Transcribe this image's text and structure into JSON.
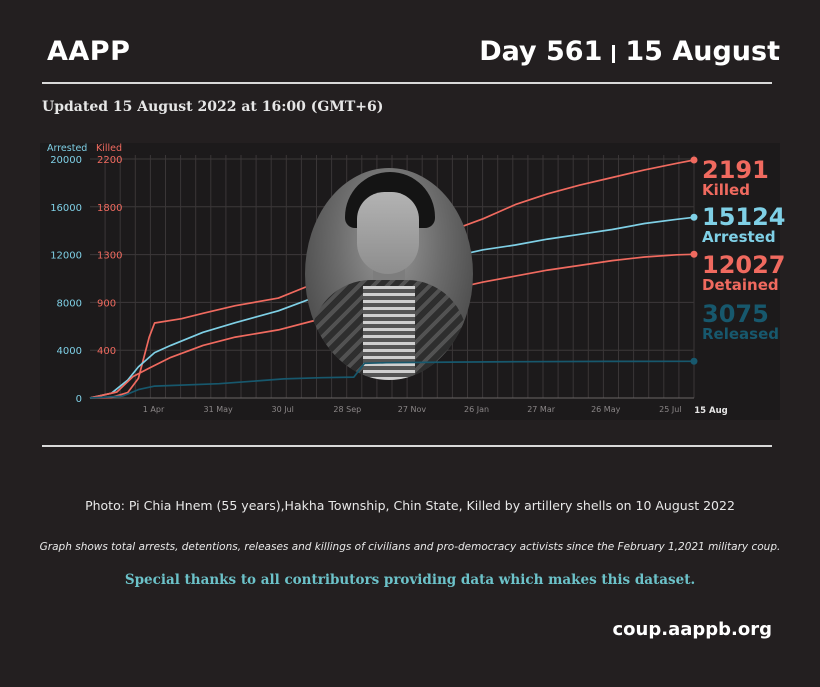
{
  "header": {
    "brand": "AAPP",
    "day": "Day 561",
    "date": "15 August"
  },
  "updated": "Updated 15 August 2022 at 16:00 (GMT+6)",
  "colors": {
    "arrested": "#7fd0e6",
    "killed": "#f06a5f",
    "detained": "#f06a5f",
    "released": "#17586d",
    "background": "#231f20",
    "thanks": "#6cc2c9"
  },
  "callouts": {
    "killed": {
      "value": "2191",
      "label": "Killed"
    },
    "arrested": {
      "value": "15124",
      "label": "Arrested"
    },
    "detained": {
      "value": "12027",
      "label": "Detained"
    },
    "released": {
      "value": "3075",
      "label": "Released"
    }
  },
  "photo_icon": "portrait-photo",
  "photo_caption": "Photo: Pi Chia Hnem (55 years),Hakha Township, Chin State, Killed by artillery shells  on 10 August 2022",
  "graph_note": "Graph shows total arrests, detentions, releases and killings of civilians and pro-democracy activists since the February 1,2021 military coup.",
  "thanks": "Special thanks to all contributors providing data which makes this dataset.",
  "website": "coup.aappb.org",
  "chart_data": {
    "type": "line",
    "left_axis_label": "Arrested",
    "right_axis_label": "Killed",
    "left_ticks": [
      "20000",
      "16000",
      "12000",
      "8000",
      "4000",
      "0"
    ],
    "right_ticks": [
      "2200",
      "1800",
      "1300",
      "900",
      "400"
    ],
    "x_ticks": [
      "1 Apr",
      "31 May",
      "30 Jul",
      "28 Sep",
      "27 Nov",
      "26 Jan",
      "27 Mar",
      "26 May",
      "25 Jul"
    ],
    "x_end_label": "15 Aug",
    "ylim_left": [
      0,
      20000
    ],
    "ylim_right": [
      0,
      2200
    ],
    "grid": true,
    "x_day_range": [
      0,
      561
    ],
    "series": [
      {
        "name": "Killed",
        "axis": "right",
        "final": 2191,
        "points": [
          [
            0,
            0
          ],
          [
            20,
            5
          ],
          [
            35,
            50
          ],
          [
            45,
            180
          ],
          [
            55,
            560
          ],
          [
            60,
            690
          ],
          [
            85,
            730
          ],
          [
            105,
            780
          ],
          [
            135,
            850
          ],
          [
            175,
            920
          ],
          [
            205,
            1040
          ],
          [
            245,
            1200
          ],
          [
            275,
            1320
          ],
          [
            305,
            1430
          ],
          [
            335,
            1540
          ],
          [
            365,
            1650
          ],
          [
            395,
            1780
          ],
          [
            425,
            1880
          ],
          [
            455,
            1960
          ],
          [
            485,
            2030
          ],
          [
            515,
            2100
          ],
          [
            545,
            2160
          ],
          [
            561,
            2191
          ]
        ]
      },
      {
        "name": "Arrested",
        "axis": "left",
        "final": 15124,
        "points": [
          [
            0,
            0
          ],
          [
            20,
            400
          ],
          [
            35,
            1500
          ],
          [
            45,
            2600
          ],
          [
            60,
            3800
          ],
          [
            75,
            4400
          ],
          [
            105,
            5500
          ],
          [
            135,
            6300
          ],
          [
            175,
            7300
          ],
          [
            205,
            8300
          ],
          [
            245,
            9600
          ],
          [
            275,
            10400
          ],
          [
            305,
            11100
          ],
          [
            335,
            11800
          ],
          [
            365,
            12400
          ],
          [
            395,
            12800
          ],
          [
            425,
            13300
          ],
          [
            455,
            13700
          ],
          [
            485,
            14100
          ],
          [
            515,
            14600
          ],
          [
            545,
            14950
          ],
          [
            561,
            15124
          ]
        ]
      },
      {
        "name": "Detained",
        "axis": "left",
        "final": 12027,
        "points": [
          [
            0,
            0
          ],
          [
            25,
            500
          ],
          [
            40,
            1800
          ],
          [
            55,
            2500
          ],
          [
            75,
            3400
          ],
          [
            105,
            4400
          ],
          [
            135,
            5100
          ],
          [
            175,
            5700
          ],
          [
            205,
            6400
          ],
          [
            245,
            7300
          ],
          [
            275,
            8000
          ],
          [
            305,
            8500
          ],
          [
            335,
            9100
          ],
          [
            365,
            9700
          ],
          [
            395,
            10200
          ],
          [
            425,
            10700
          ],
          [
            455,
            11100
          ],
          [
            485,
            11500
          ],
          [
            515,
            11800
          ],
          [
            545,
            11980
          ],
          [
            561,
            12027
          ]
        ]
      },
      {
        "name": "Released",
        "axis": "left",
        "final": 3075,
        "points": [
          [
            0,
            0
          ],
          [
            30,
            150
          ],
          [
            45,
            700
          ],
          [
            60,
            1000
          ],
          [
            120,
            1200
          ],
          [
            150,
            1400
          ],
          [
            180,
            1600
          ],
          [
            215,
            1700
          ],
          [
            245,
            1750
          ],
          [
            255,
            2900
          ],
          [
            275,
            2950
          ],
          [
            335,
            3000
          ],
          [
            400,
            3040
          ],
          [
            480,
            3060
          ],
          [
            561,
            3075
          ]
        ]
      }
    ]
  }
}
